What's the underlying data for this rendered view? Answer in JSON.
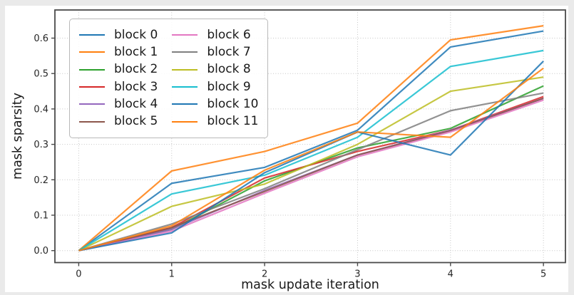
{
  "figure": {
    "x_ticks": [
      "0",
      "1",
      "2",
      "3",
      "4",
      "5"
    ],
    "y_ticks": [
      "0.0",
      "0.1",
      "0.2",
      "0.3",
      "0.4",
      "0.5",
      "0.6"
    ],
    "frame_color": "#4a4a4a",
    "grid_color": "#c6c6c6",
    "tick_label_color": "#262626"
  },
  "chart_data": {
    "type": "line",
    "title": "",
    "xlabel": "mask update iteration",
    "ylabel": "mask sparsity",
    "x": [
      0,
      1,
      2,
      3,
      4,
      5
    ],
    "xlim": [
      -0.25,
      5.24
    ],
    "ylim": [
      -0.049,
      0.68
    ],
    "grid": true,
    "grid_style": "dotted",
    "legend_position": "upper left",
    "legend_columns": 2,
    "series": [
      {
        "name": "block 0",
        "color": "#1f77b4",
        "values": [
          0,
          0.19,
          0.235,
          0.34,
          0.575,
          0.62
        ]
      },
      {
        "name": "block 1",
        "color": "#ff7f0e",
        "values": [
          0,
          0.225,
          0.28,
          0.36,
          0.595,
          0.635
        ]
      },
      {
        "name": "block 2",
        "color": "#2ca02c",
        "values": [
          0,
          0.06,
          0.197,
          0.29,
          0.345,
          0.465
        ]
      },
      {
        "name": "block 3",
        "color": "#d62728",
        "values": [
          0,
          0.065,
          0.205,
          0.28,
          0.34,
          0.435
        ]
      },
      {
        "name": "block 4",
        "color": "#9467bd",
        "values": [
          0,
          0.06,
          0.17,
          0.27,
          0.34,
          0.43
        ]
      },
      {
        "name": "block 5",
        "color": "#8c564b",
        "values": [
          0,
          0.065,
          0.167,
          0.27,
          0.338,
          0.43
        ]
      },
      {
        "name": "block 6",
        "color": "#e377c2",
        "values": [
          0,
          0.055,
          0.162,
          0.265,
          0.335,
          0.425
        ]
      },
      {
        "name": "block 7",
        "color": "#7f7f7f",
        "values": [
          0,
          0.075,
          0.175,
          0.285,
          0.395,
          0.445
        ]
      },
      {
        "name": "block 8",
        "color": "#bcbd22",
        "values": [
          0,
          0.125,
          0.188,
          0.3,
          0.45,
          0.49
        ]
      },
      {
        "name": "block 9",
        "color": "#17becf",
        "values": [
          0,
          0.16,
          0.213,
          0.32,
          0.52,
          0.565
        ]
      },
      {
        "name": "block 10",
        "color": "#1f77b4",
        "values": [
          0,
          0.05,
          0.22,
          0.335,
          0.27,
          0.535
        ]
      },
      {
        "name": "block 11",
        "color": "#ff7f0e",
        "values": [
          0,
          0.07,
          0.227,
          0.335,
          0.32,
          0.515
        ]
      }
    ]
  }
}
